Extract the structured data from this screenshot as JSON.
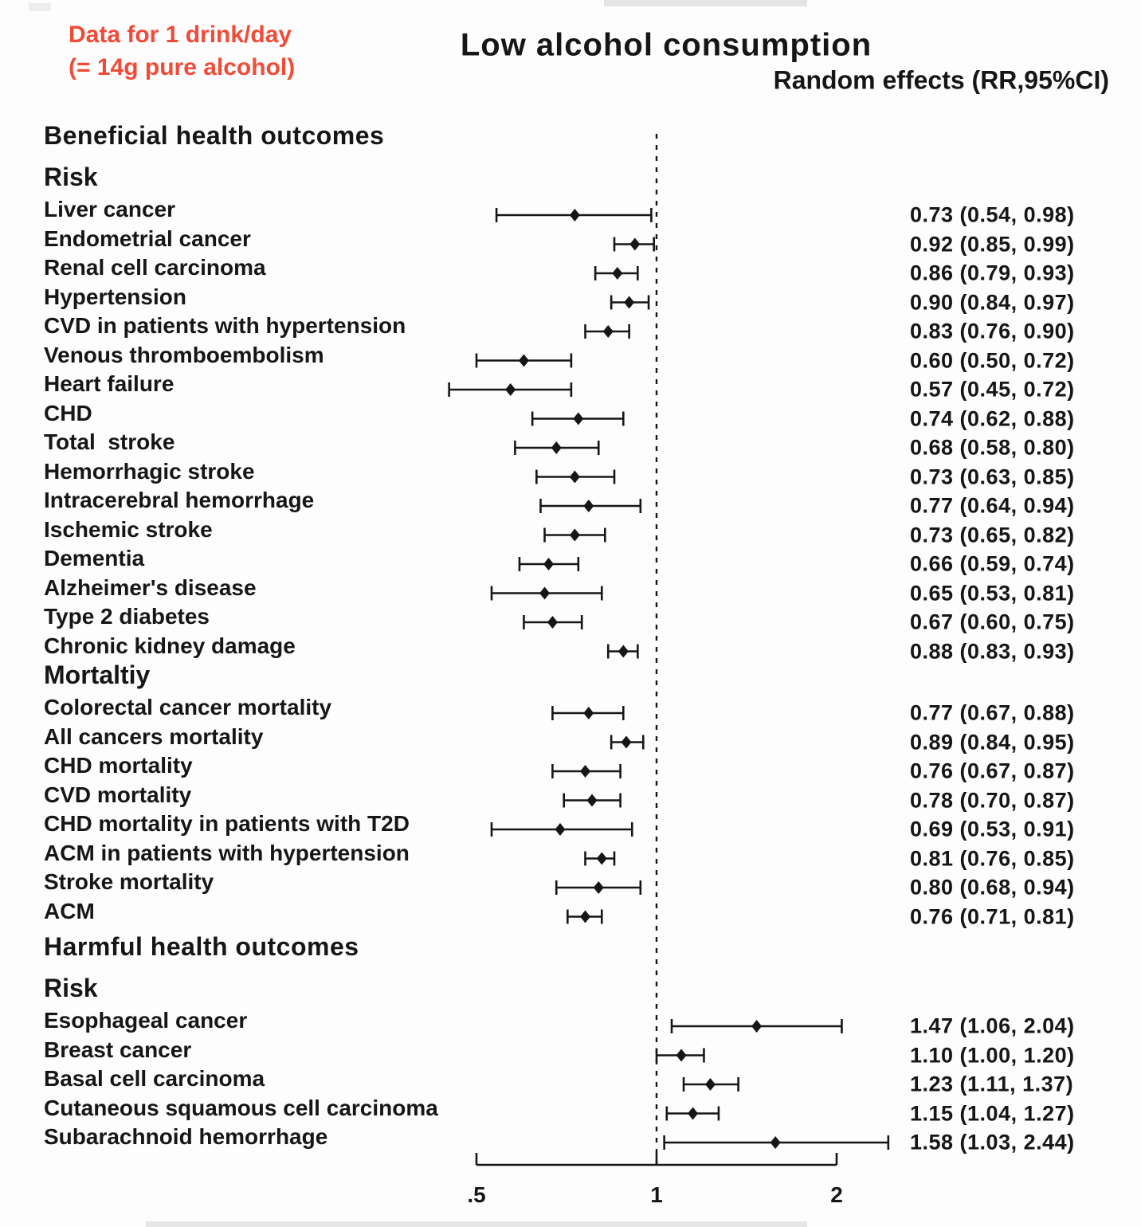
{
  "chart_data": {
    "type": "forest",
    "title": "Low alcohol consumption",
    "subtitle": "Random effects (RR,95%CI)",
    "annotation_line1": "Data for 1 drink/day",
    "annotation_line2": "(= 14g pure alcohol)",
    "x_scale": "log",
    "reference_line": 1,
    "x_ticks": [
      {
        "value": 0.5,
        "label": ".5"
      },
      {
        "value": 1,
        "label": "1"
      },
      {
        "value": 2,
        "label": "2"
      }
    ],
    "rows": [
      {
        "kind": "header",
        "label": "Beneficial health outcomes"
      },
      {
        "kind": "subheader",
        "label": "Risk"
      },
      {
        "kind": "row",
        "label": "Liver cancer",
        "rr": 0.73,
        "lo": 0.54,
        "hi": 0.98,
        "text": "0.73 (0.54, 0.98)"
      },
      {
        "kind": "row",
        "label": "Endometrial cancer",
        "rr": 0.92,
        "lo": 0.85,
        "hi": 0.99,
        "text": "0.92 (0.85, 0.99)"
      },
      {
        "kind": "row",
        "label": "Renal cell carcinoma",
        "rr": 0.86,
        "lo": 0.79,
        "hi": 0.93,
        "text": "0.86 (0.79, 0.93)"
      },
      {
        "kind": "row",
        "label": "Hypertension",
        "rr": 0.9,
        "lo": 0.84,
        "hi": 0.97,
        "text": "0.90 (0.84, 0.97)"
      },
      {
        "kind": "row",
        "label": "CVD in patients with hypertension",
        "rr": 0.83,
        "lo": 0.76,
        "hi": 0.9,
        "text": "0.83 (0.76, 0.90)"
      },
      {
        "kind": "row",
        "label": "Venous thromboembolism",
        "rr": 0.6,
        "lo": 0.5,
        "hi": 0.72,
        "text": "0.60 (0.50, 0.72)"
      },
      {
        "kind": "row",
        "label": "Heart failure",
        "rr": 0.57,
        "lo": 0.45,
        "hi": 0.72,
        "text": "0.57 (0.45, 0.72)"
      },
      {
        "kind": "row",
        "label": "CHD",
        "rr": 0.74,
        "lo": 0.62,
        "hi": 0.88,
        "text": "0.74 (0.62, 0.88)"
      },
      {
        "kind": "row",
        "label": "Total  stroke",
        "rr": 0.68,
        "lo": 0.58,
        "hi": 0.8,
        "text": "0.68 (0.58, 0.80)"
      },
      {
        "kind": "row",
        "label": "Hemorrhagic stroke",
        "rr": 0.73,
        "lo": 0.63,
        "hi": 0.85,
        "text": "0.73 (0.63, 0.85)"
      },
      {
        "kind": "row",
        "label": "Intracerebral hemorrhage",
        "rr": 0.77,
        "lo": 0.64,
        "hi": 0.94,
        "text": "0.77 (0.64, 0.94)"
      },
      {
        "kind": "row",
        "label": "Ischemic stroke",
        "rr": 0.73,
        "lo": 0.65,
        "hi": 0.82,
        "text": "0.73 (0.65, 0.82)"
      },
      {
        "kind": "row",
        "label": "Dementia",
        "rr": 0.66,
        "lo": 0.59,
        "hi": 0.74,
        "text": "0.66 (0.59, 0.74)"
      },
      {
        "kind": "row",
        "label": "Alzheimer's disease",
        "rr": 0.65,
        "lo": 0.53,
        "hi": 0.81,
        "text": "0.65 (0.53, 0.81)"
      },
      {
        "kind": "row",
        "label": "Type 2 diabetes",
        "rr": 0.67,
        "lo": 0.6,
        "hi": 0.75,
        "text": "0.67 (0.60, 0.75)"
      },
      {
        "kind": "row",
        "label": "Chronic kidney damage",
        "rr": 0.88,
        "lo": 0.83,
        "hi": 0.93,
        "text": "0.88 (0.83, 0.93)"
      },
      {
        "kind": "subheader",
        "label": "Mortaltiy"
      },
      {
        "kind": "row",
        "label": "Colorectal cancer mortality",
        "rr": 0.77,
        "lo": 0.67,
        "hi": 0.88,
        "text": "0.77 (0.67, 0.88)"
      },
      {
        "kind": "row",
        "label": "All cancers mortality",
        "rr": 0.89,
        "lo": 0.84,
        "hi": 0.95,
        "text": "0.89 (0.84, 0.95)"
      },
      {
        "kind": "row",
        "label": "CHD mortality",
        "rr": 0.76,
        "lo": 0.67,
        "hi": 0.87,
        "text": "0.76 (0.67, 0.87)"
      },
      {
        "kind": "row",
        "label": "CVD mortality",
        "rr": 0.78,
        "lo": 0.7,
        "hi": 0.87,
        "text": "0.78 (0.70, 0.87)"
      },
      {
        "kind": "row",
        "label": "CHD mortality in patients with T2D",
        "rr": 0.69,
        "lo": 0.53,
        "hi": 0.91,
        "text": "0.69 (0.53, 0.91)"
      },
      {
        "kind": "row",
        "label": "ACM in patients with hypertension",
        "rr": 0.81,
        "lo": 0.76,
        "hi": 0.85,
        "text": "0.81 (0.76, 0.85)"
      },
      {
        "kind": "row",
        "label": "Stroke mortality",
        "rr": 0.8,
        "lo": 0.68,
        "hi": 0.94,
        "text": "0.80 (0.68, 0.94)"
      },
      {
        "kind": "row",
        "label": "ACM",
        "rr": 0.76,
        "lo": 0.71,
        "hi": 0.81,
        "text": "0.76 (0.71, 0.81)"
      },
      {
        "kind": "header",
        "label": "Harmful health outcomes"
      },
      {
        "kind": "subheader",
        "label": "Risk"
      },
      {
        "kind": "row",
        "label": "Esophageal cancer",
        "rr": 1.47,
        "lo": 1.06,
        "hi": 2.04,
        "text": "1.47 (1.06, 2.04)"
      },
      {
        "kind": "row",
        "label": "Breast cancer",
        "rr": 1.1,
        "lo": 1.0,
        "hi": 1.2,
        "text": "1.10 (1.00, 1.20)"
      },
      {
        "kind": "row",
        "label": "Basal cell carcinoma",
        "rr": 1.23,
        "lo": 1.11,
        "hi": 1.37,
        "text": "1.23 (1.11, 1.37)"
      },
      {
        "kind": "row",
        "label": "Cutaneous squamous cell carcinoma",
        "rr": 1.15,
        "lo": 1.04,
        "hi": 1.27,
        "text": "1.15 (1.04, 1.27)"
      },
      {
        "kind": "row",
        "label": "Subarachnoid hemorrhage",
        "rr": 1.58,
        "lo": 1.03,
        "hi": 2.44,
        "text": "1.58 (1.03, 2.44)"
      }
    ]
  }
}
